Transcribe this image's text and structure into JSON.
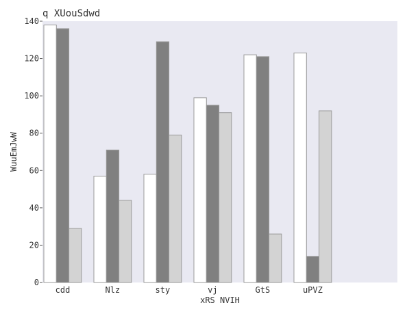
{
  "chart_data": {
    "type": "bar",
    "title": "q XUouSdwd",
    "xlabel": "xRS NVIH",
    "ylabel": "WuuEmJwW",
    "categories": [
      "cdd",
      "Nlz",
      "sty",
      "vj",
      "GtS",
      "uPVZ"
    ],
    "series": [
      {
        "values": [
          138,
          57,
          58,
          99,
          122,
          123
        ]
      },
      {
        "values": [
          136,
          71,
          129,
          95,
          121,
          14
        ]
      },
      {
        "values": [
          29,
          44,
          79,
          91,
          26,
          92
        ]
      }
    ],
    "ylim": [
      0,
      140
    ],
    "yticks": [
      0,
      20,
      40,
      60,
      80,
      100,
      120,
      140
    ],
    "grid": false,
    "legend": "none",
    "colors": {
      "plot_background": "#e9e9f2",
      "series": [
        "#ffffff",
        "#808080",
        "#d3d3d3"
      ],
      "bar_edge": "#9a9a9a"
    }
  }
}
